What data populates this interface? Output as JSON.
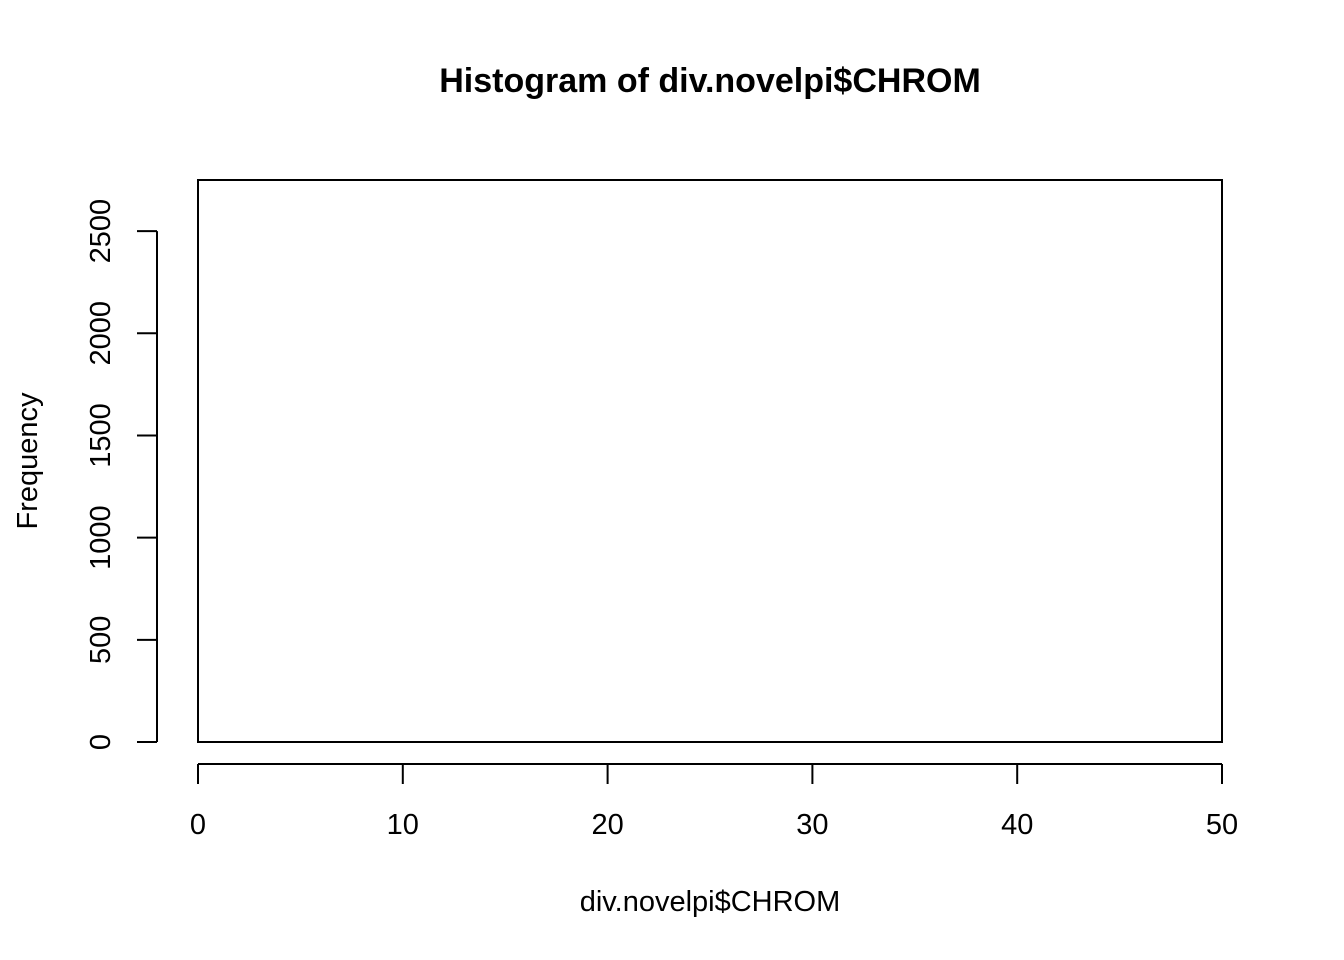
{
  "chart_data": {
    "type": "bar",
    "title": "Histogram of div.novelpi$CHROM",
    "xlabel": "div.novelpi$CHROM",
    "ylabel": "Frequency",
    "xlim": [
      0,
      50
    ],
    "ylim": [
      0,
      2750
    ],
    "x_ticks": [
      0,
      10,
      20,
      30,
      40,
      50
    ],
    "y_ticks": [
      0,
      500,
      1000,
      1500,
      2000,
      2500
    ],
    "x_tick_labels": [
      "0",
      "10",
      "20",
      "30",
      "40",
      "50"
    ],
    "y_tick_labels": [
      "0",
      "500",
      "1000",
      "1500",
      "2000",
      "2500"
    ],
    "bins": [
      {
        "start": 0,
        "end": 50,
        "count": 0
      }
    ],
    "grid": false,
    "colors": {
      "bar_fill": "#ffffff",
      "bar_border": "#000000",
      "axis": "#000000",
      "background": "#ffffff"
    }
  }
}
